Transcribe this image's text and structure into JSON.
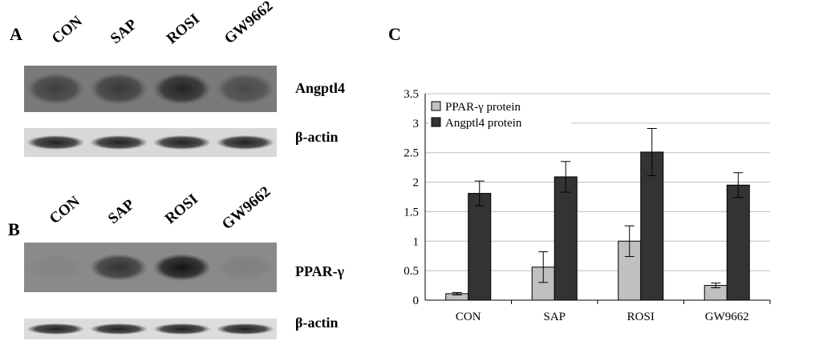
{
  "panels": {
    "a": {
      "letter": "A",
      "lanes": [
        "CON",
        "SAP",
        "ROSI",
        "GW9662"
      ],
      "bands": [
        {
          "protein": "Angptl4",
          "intensities": [
            0.55,
            0.6,
            0.8,
            0.45
          ]
        },
        {
          "protein": "β-actin",
          "intensities": [
            0.9,
            0.9,
            0.9,
            0.9
          ]
        }
      ]
    },
    "b": {
      "letter": "B",
      "lanes": [
        "CON",
        "SAP",
        "ROSI",
        "GW9662"
      ],
      "bands": [
        {
          "protein": "PPAR-γ",
          "intensities": [
            0.05,
            0.7,
            0.95,
            0.08
          ]
        },
        {
          "protein": "β-actin",
          "intensities": [
            0.9,
            0.9,
            0.9,
            0.9
          ]
        }
      ]
    },
    "c": {
      "letter": "C"
    }
  },
  "chart_data": {
    "type": "bar",
    "categories": [
      "CON",
      "SAP",
      "ROSI",
      "GW9662"
    ],
    "series": [
      {
        "name": "PPAR-γ protein",
        "values": [
          0.11,
          0.56,
          1.0,
          0.25
        ],
        "errors": [
          0.02,
          0.26,
          0.26,
          0.04
        ],
        "color": "#c0c0c0"
      },
      {
        "name": "Angptl4 protein",
        "values": [
          1.81,
          2.09,
          2.51,
          1.95
        ],
        "errors": [
          0.21,
          0.26,
          0.4,
          0.21
        ],
        "color": "#333333"
      }
    ],
    "ylim": [
      0,
      3.5
    ],
    "yticks": [
      "0",
      "0.5",
      "1",
      "1.5",
      "2",
      "2.5",
      "3",
      "3.5"
    ],
    "grid": true,
    "legend": "top-left"
  }
}
